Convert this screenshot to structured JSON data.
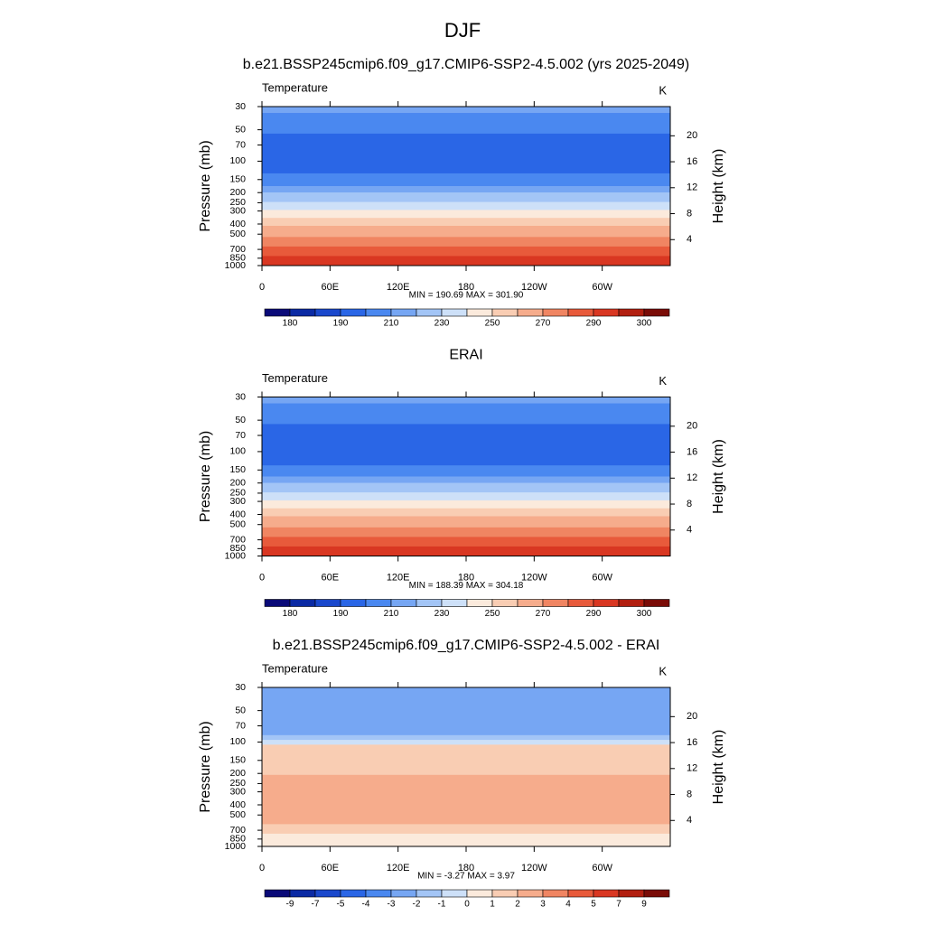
{
  "title": "DJF",
  "chart_data": [
    {
      "type": "contour",
      "title": "b.e21.BSSP245cmip6.f09_g17.CMIP6-SSP2-4.5.002 (yrs 2025-2049)",
      "left_label": "Temperature",
      "right_label": "K",
      "ylabel": "Pressure (mb)",
      "y2label": "Height (km)",
      "xlim": [
        0,
        360
      ],
      "xticks": [
        0,
        {
          "value": 60,
          "label": "60E"
        },
        {
          "value": 120,
          "label": "120E"
        },
        180,
        {
          "value": 240,
          "label": "120W"
        },
        {
          "value": 300,
          "label": "60W"
        }
      ],
      "ylim": [
        1000,
        30
      ],
      "ylog": true,
      "yticks": [
        30,
        50,
        70,
        100,
        150,
        200,
        250,
        300,
        400,
        500,
        700,
        850,
        1000
      ],
      "y2lim": [
        0,
        24.5
      ],
      "y2ticks": [
        4,
        8,
        12,
        16,
        20
      ],
      "stats": "MIN = 190.69  MAX = 301.90",
      "colorbar": {
        "colors": [
          "#0a0a78",
          "#0b2aa4",
          "#1a48cc",
          "#2a66e6",
          "#4a88f0",
          "#76a6f3",
          "#a3c5f6",
          "#cde0f8",
          "#fbeadc",
          "#f9cdb3",
          "#f6ac8c",
          "#f08562",
          "#e85a3b",
          "#d93722",
          "#b21f10",
          "#7a0c07"
        ],
        "ticks": [
          180,
          null,
          190,
          null,
          210,
          null,
          230,
          null,
          250,
          null,
          270,
          null,
          290,
          null,
          300
        ]
      }
    },
    {
      "type": "contour",
      "title": "ERAI",
      "left_label": "Temperature",
      "right_label": "K",
      "ylabel": "Pressure (mb)",
      "y2label": "Height (km)",
      "xlim": [
        0,
        360
      ],
      "xticks": [
        0,
        {
          "value": 60,
          "label": "60E"
        },
        {
          "value": 120,
          "label": "120E"
        },
        180,
        {
          "value": 240,
          "label": "120W"
        },
        {
          "value": 300,
          "label": "60W"
        }
      ],
      "ylim": [
        1000,
        30
      ],
      "ylog": true,
      "yticks": [
        30,
        50,
        70,
        100,
        150,
        200,
        250,
        300,
        400,
        500,
        700,
        850,
        1000
      ],
      "y2lim": [
        0,
        24.5
      ],
      "y2ticks": [
        4,
        8,
        12,
        16,
        20
      ],
      "stats": "MIN = 188.39  MAX = 304.18",
      "colorbar": {
        "colors": [
          "#0a0a78",
          "#0b2aa4",
          "#1a48cc",
          "#2a66e6",
          "#4a88f0",
          "#76a6f3",
          "#a3c5f6",
          "#cde0f8",
          "#fbeadc",
          "#f9cdb3",
          "#f6ac8c",
          "#f08562",
          "#e85a3b",
          "#d93722",
          "#b21f10",
          "#7a0c07"
        ],
        "ticks": [
          180,
          null,
          190,
          null,
          210,
          null,
          230,
          null,
          250,
          null,
          270,
          null,
          290,
          null,
          300
        ]
      }
    },
    {
      "type": "contour",
      "title": "b.e21.BSSP245cmip6.f09_g17.CMIP6-SSP2-4.5.002 - ERAI",
      "left_label": "Temperature",
      "right_label": "K",
      "ylabel": "Pressure (mb)",
      "y2label": "Height (km)",
      "xlim": [
        0,
        360
      ],
      "xticks": [
        0,
        {
          "value": 60,
          "label": "60E"
        },
        {
          "value": 120,
          "label": "120E"
        },
        180,
        {
          "value": 240,
          "label": "120W"
        },
        {
          "value": 300,
          "label": "60W"
        }
      ],
      "ylim": [
        1000,
        30
      ],
      "ylog": true,
      "yticks": [
        30,
        50,
        70,
        100,
        150,
        200,
        250,
        300,
        400,
        500,
        700,
        850,
        1000
      ],
      "y2lim": [
        0,
        24.5
      ],
      "y2ticks": [
        4,
        8,
        12,
        16,
        20
      ],
      "stats": "MIN =  -3.27  MAX =   3.97",
      "colorbar": {
        "colors": [
          "#0a0a78",
          "#0b2aa4",
          "#1a48cc",
          "#2a66e6",
          "#4a88f0",
          "#76a6f3",
          "#a3c5f6",
          "#cde0f8",
          "#fbeadc",
          "#f9cdb3",
          "#f6ac8c",
          "#f08562",
          "#e85a3b",
          "#d93722",
          "#b21f10",
          "#7a0c07"
        ],
        "ticks": [
          -9,
          -7,
          -5,
          -4,
          -3,
          -2,
          -1,
          0,
          1,
          2,
          3,
          4,
          5,
          7,
          9
        ]
      }
    }
  ]
}
